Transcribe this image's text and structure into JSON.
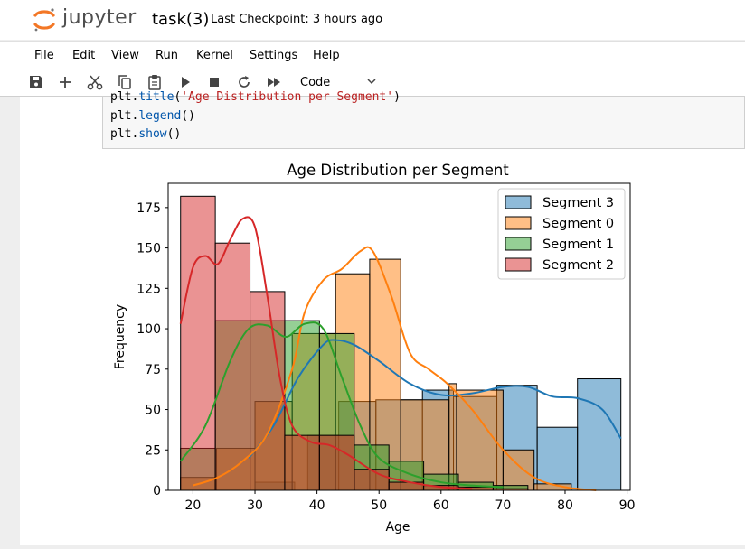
{
  "header": {
    "logo_text": "jupyter",
    "notebook_title": "task(3)",
    "checkpoint": "Last Checkpoint: 3 hours ago"
  },
  "menu": [
    "File",
    "Edit",
    "View",
    "Run",
    "Kernel",
    "Settings",
    "Help"
  ],
  "toolbar": {
    "icons": [
      "save-icon",
      "add-icon",
      "cut-icon",
      "copy-icon",
      "paste-icon",
      "run-icon",
      "stop-icon",
      "restart-icon",
      "fast-forward-icon"
    ],
    "cell_type": "Code"
  },
  "code": {
    "line1_pre": "plt.",
    "line1_fn": "title",
    "line1_open": "(",
    "line1_str": "'Age Distribution per Segment'",
    "line1_close": ")",
    "line2_pre": "plt.",
    "line2_fn": "legend",
    "line2_post": "()",
    "line3_pre": "plt.",
    "line3_fn": "show",
    "line3_post": "()"
  },
  "colors": {
    "segment3": "#1f77b4",
    "segment0": "#ff7f0e",
    "segment1": "#2ca02c",
    "segment2": "#d62728"
  },
  "chart_data": {
    "type": "bar",
    "title": "Age Distribution per Segment",
    "xlabel": "Age",
    "ylabel": "Frequency",
    "xlim": [
      16,
      90.5
    ],
    "ylim": [
      0,
      190
    ],
    "xticks": [
      20,
      30,
      40,
      50,
      60,
      70,
      80,
      90
    ],
    "yticks": [
      0,
      25,
      50,
      75,
      100,
      125,
      150,
      175
    ],
    "legend_position": "top-right",
    "bin_edges": [
      18,
      23.6,
      29.2,
      34.8,
      40.4,
      46,
      51.6,
      57.2,
      62.8,
      68.4,
      74,
      79.6,
      85.2,
      90.8
    ],
    "series": [
      {
        "name": "Segment 3",
        "color": "#1f77b4",
        "bins": [
          [
            20,
            38.8,
            0
          ],
          [
            30,
            36.4,
            5
          ],
          [
            38.5,
            43.5,
            34
          ],
          [
            43.5,
            49.5,
            55
          ],
          [
            49.5,
            57,
            56
          ],
          [
            57,
            62,
            62
          ],
          [
            62,
            69,
            58
          ],
          [
            69,
            75.5,
            65
          ],
          [
            75.5,
            82,
            39
          ],
          [
            82,
            89,
            69
          ]
        ],
        "kde": [
          [
            29,
            20
          ],
          [
            33,
            40
          ],
          [
            37,
            70
          ],
          [
            41,
            90
          ],
          [
            43,
            93
          ],
          [
            46,
            90
          ],
          [
            50,
            80
          ],
          [
            55,
            66
          ],
          [
            60,
            59
          ],
          [
            65,
            60
          ],
          [
            70,
            64
          ],
          [
            74,
            64
          ],
          [
            78,
            58
          ],
          [
            82,
            57
          ],
          [
            86,
            50
          ],
          [
            89,
            32
          ]
        ]
      },
      {
        "name": "Segment 0",
        "color": "#ff7f0e",
        "bins": [
          [
            18,
            23.8,
            8
          ],
          [
            23.8,
            30,
            26
          ],
          [
            30,
            36,
            55
          ],
          [
            36,
            43,
            97
          ],
          [
            43,
            48.5,
            134
          ],
          [
            48.5,
            53.5,
            143
          ],
          [
            53.5,
            61.3,
            56
          ],
          [
            61.3,
            62.5,
            66
          ],
          [
            62.5,
            70,
            62
          ],
          [
            70,
            75,
            25
          ],
          [
            75,
            81,
            4
          ]
        ],
        "kde": [
          [
            20,
            3
          ],
          [
            24,
            8
          ],
          [
            28,
            18
          ],
          [
            32,
            35
          ],
          [
            36,
            75
          ],
          [
            38,
            110
          ],
          [
            41,
            130
          ],
          [
            44,
            137
          ],
          [
            47,
            148
          ],
          [
            49,
            148
          ],
          [
            52,
            120
          ],
          [
            55,
            85
          ],
          [
            58,
            75
          ],
          [
            61,
            66
          ],
          [
            65,
            50
          ],
          [
            70,
            25
          ],
          [
            75,
            8
          ],
          [
            80,
            2
          ],
          [
            85,
            0
          ]
        ]
      },
      {
        "name": "Segment 1",
        "color": "#2ca02c",
        "bins": [
          [
            18,
            23.6,
            26
          ],
          [
            23.6,
            29.2,
            105
          ],
          [
            29.2,
            34.8,
            105
          ],
          [
            34.8,
            40.4,
            105
          ],
          [
            40.4,
            46,
            97
          ],
          [
            46,
            51.6,
            28
          ],
          [
            51.6,
            57.2,
            18
          ],
          [
            57.2,
            62.8,
            10
          ],
          [
            62.8,
            68.4,
            5
          ],
          [
            68.4,
            74,
            3
          ]
        ],
        "kde": [
          [
            18,
            18
          ],
          [
            22,
            40
          ],
          [
            26,
            80
          ],
          [
            29,
            100
          ],
          [
            32,
            102
          ],
          [
            35,
            95
          ],
          [
            38,
            103
          ],
          [
            41,
            100
          ],
          [
            44,
            70
          ],
          [
            47,
            40
          ],
          [
            50,
            20
          ],
          [
            55,
            10
          ],
          [
            60,
            5
          ],
          [
            65,
            3
          ],
          [
            70,
            2
          ]
        ]
      },
      {
        "name": "Segment 2",
        "color": "#d62728",
        "bins": [
          [
            18,
            23.6,
            182
          ],
          [
            23.6,
            29.2,
            153
          ],
          [
            29.2,
            34.8,
            123
          ],
          [
            34.8,
            40.4,
            34
          ],
          [
            40.4,
            46,
            34
          ],
          [
            46,
            51.6,
            13
          ],
          [
            51.6,
            57.2,
            5
          ],
          [
            57.2,
            62.8,
            3
          ],
          [
            62.8,
            68.4,
            2
          ],
          [
            68.4,
            74,
            1
          ]
        ],
        "kde": [
          [
            18,
            103
          ],
          [
            20,
            138
          ],
          [
            22,
            145
          ],
          [
            24,
            140
          ],
          [
            26,
            155
          ],
          [
            28,
            168
          ],
          [
            30,
            163
          ],
          [
            32,
            120
          ],
          [
            34,
            70
          ],
          [
            36,
            40
          ],
          [
            39,
            30
          ],
          [
            42,
            28
          ],
          [
            45,
            22
          ],
          [
            50,
            10
          ],
          [
            55,
            5
          ],
          [
            60,
            2
          ],
          [
            65,
            1
          ]
        ]
      }
    ],
    "legend_entries": [
      "Segment 3",
      "Segment 0",
      "Segment 1",
      "Segment 2"
    ]
  }
}
